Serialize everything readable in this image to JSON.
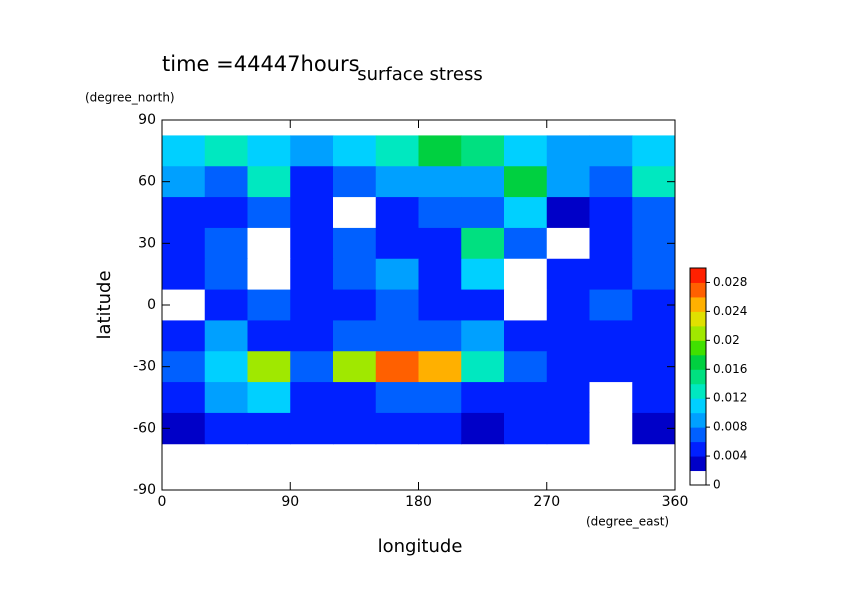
{
  "chart_data": {
    "type": "heatmap",
    "title": "surface stress",
    "subtitle": "time =44447hours",
    "xlabel": "longitude",
    "xunit": "(degree_east)",
    "ylabel": "latitude",
    "yunit": "(degree_north)",
    "xlim": [
      0,
      360
    ],
    "xticks": [
      0,
      90,
      180,
      270,
      360
    ],
    "ylim": [
      -90,
      90
    ],
    "yticks": [
      -90,
      -60,
      -30,
      0,
      30,
      60,
      90
    ],
    "lon": [
      15,
      45,
      75,
      105,
      135,
      165,
      195,
      225,
      255,
      285,
      315,
      345
    ],
    "lat": [
      75,
      60,
      45,
      30,
      15,
      0,
      -15,
      -30,
      -45,
      -60
    ],
    "z": [
      [
        0.01,
        0.012,
        0.01,
        0.008,
        0.01,
        0.012,
        0.016,
        0.014,
        0.01,
        0.008,
        0.008,
        0.01
      ],
      [
        0.008,
        0.006,
        0.012,
        0.004,
        0.006,
        0.008,
        0.008,
        0.008,
        0.016,
        0.008,
        0.006,
        0.012
      ],
      [
        0.004,
        0.004,
        0.006,
        0.004,
        0,
        0.004,
        0.006,
        0.006,
        0.01,
        0.002,
        0.004,
        0.006
      ],
      [
        0.004,
        0.006,
        0,
        0.004,
        0.006,
        0.004,
        0.004,
        0.014,
        0.006,
        0,
        0.004,
        0.006
      ],
      [
        0.004,
        0.006,
        0,
        0.004,
        0.006,
        0.008,
        0.004,
        0.01,
        0,
        0.004,
        0.004,
        0.006
      ],
      [
        0,
        0.004,
        0.006,
        0.004,
        0.004,
        0.006,
        0.004,
        0.004,
        0,
        0.004,
        0.006,
        0.004
      ],
      [
        0.004,
        0.008,
        0.004,
        0.004,
        0.006,
        0.006,
        0.006,
        0.008,
        0.004,
        0.004,
        0.004,
        0.004
      ],
      [
        0.006,
        0.01,
        0.02,
        0.006,
        0.02,
        0.026,
        0.024,
        0.012,
        0.006,
        0.004,
        0.004,
        0.004
      ],
      [
        0.004,
        0.008,
        0.01,
        0.004,
        0.004,
        0.006,
        0.006,
        0.004,
        0.004,
        0.004,
        0,
        0.004
      ],
      [
        0.002,
        0.004,
        0.004,
        0.004,
        0.004,
        0.004,
        0.004,
        0.002,
        0.004,
        0.004,
        0,
        0.002
      ]
    ],
    "clim": [
      0,
      0.03
    ],
    "colors": [
      "#ffffff",
      "#0000c8",
      "#0020ff",
      "#0060ff",
      "#00a0ff",
      "#00d0ff",
      "#00e8c0",
      "#00e080",
      "#00d040",
      "#40e000",
      "#a0e800",
      "#e0e000",
      "#ffb000",
      "#ff6000",
      "#ff2000"
    ],
    "cticks": [
      0,
      0.004,
      0.008,
      0.012,
      0.016,
      0.02,
      0.024,
      0.028
    ]
  }
}
